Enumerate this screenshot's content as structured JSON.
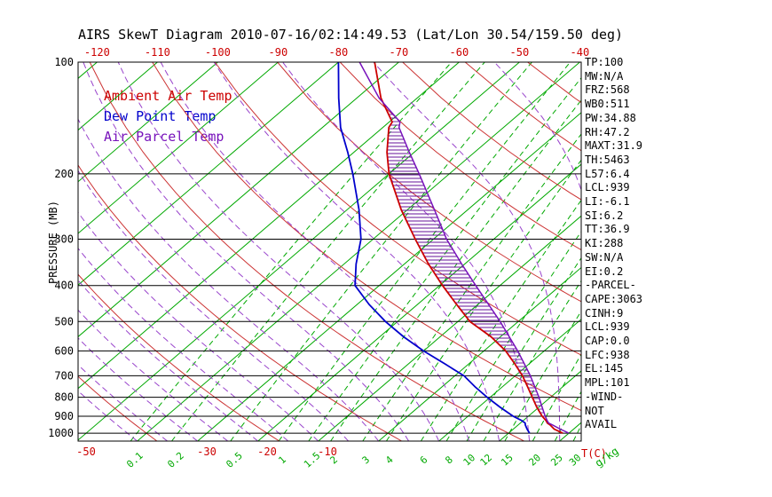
{
  "title": "AIRS SkewT Diagram 2010-07-16/02:14:49.53 (Lat/Lon 30.54/159.50 deg)",
  "legend": [
    {
      "label": "Ambient Air Temp",
      "color": "#cc0000"
    },
    {
      "label": "Dew Point Temp",
      "color": "#0000cc"
    },
    {
      "label": "Air Parcel Temp",
      "color": "#7711bb"
    }
  ],
  "axes": {
    "pressure_label": "PRESSURE (MB)",
    "pressure_ticks": [
      100,
      200,
      300,
      400,
      500,
      600,
      700,
      800,
      900,
      1000
    ],
    "top_temp_ticks": [
      -120,
      -110,
      -100,
      -90,
      -80,
      -70,
      -60,
      -50,
      -40
    ],
    "bottom_temp_ticks": [
      -50,
      -30,
      -20,
      -10
    ],
    "temp_unit": "T(C)",
    "mixing_ratio_labels": [
      "0.1",
      "0.2",
      "0.5",
      "1",
      "1.5",
      "2",
      "3",
      "4",
      "6",
      "8",
      "10",
      "12",
      "15",
      "20",
      "25",
      "30"
    ],
    "mixing_unit": "g/kg"
  },
  "stats": [
    "TP:100",
    "MW:N/A",
    "FRZ:568",
    "WB0:511",
    "PW:34.88",
    "RH:47.2",
    "MAXT:31.9",
    "TH:5463",
    "L57:6.4",
    "LCL:939",
    "LI:-6.1",
    "SI:6.2",
    "TT:36.9",
    "KI:288",
    "SW:N/A",
    "EI:0.2",
    "-PARCEL-",
    "CAPE:3063",
    "CINH:9",
    "LCL:939",
    "CAP:0.0",
    "LFC:938",
    "EL:145",
    "MPL:101",
    "-WIND-",
    "NOT",
    "AVAIL"
  ],
  "chart_data": {
    "type": "line",
    "subtype": "skewt-log-p",
    "pressure_range_mb": [
      100,
      1050
    ],
    "grid": {
      "isotherms_C": {
        "min": -160,
        "max": 50,
        "step": 10,
        "color": "#00a800",
        "style": "solid"
      },
      "dry_adiabats_theta_C": {
        "min": -140,
        "max": 240,
        "step": 20,
        "color": "#cc3333",
        "style": "solid"
      },
      "moist_adiabats_start_C": {
        "min": -40,
        "max": 45,
        "step": 5,
        "color": "#9944cc",
        "style": "dashed"
      },
      "mixing_ratios_gkg": [
        0.1,
        0.2,
        0.5,
        1,
        1.5,
        2,
        3,
        4,
        6,
        8,
        10,
        12,
        15,
        20,
        25,
        30
      ],
      "mixing_color": "#00a800"
    },
    "cape_hatch": {
      "from_mb": 938,
      "to_mb": 138,
      "color": "#661199"
    },
    "series": [
      {
        "name": "Ambient Air Temp",
        "color": "#cc0000",
        "points_p_T": [
          [
            1000,
            29
          ],
          [
            975,
            26.8
          ],
          [
            950,
            25.3
          ],
          [
            939,
            24.5
          ],
          [
            925,
            23.8
          ],
          [
            900,
            22.3
          ],
          [
            850,
            19.6
          ],
          [
            800,
            17
          ],
          [
            750,
            14.2
          ],
          [
            700,
            11.2
          ],
          [
            650,
            7.6
          ],
          [
            600,
            3.6
          ],
          [
            550,
            -1.5
          ],
          [
            500,
            -8
          ],
          [
            450,
            -13.5
          ],
          [
            400,
            -19.5
          ],
          [
            350,
            -26
          ],
          [
            300,
            -33
          ],
          [
            250,
            -41
          ],
          [
            200,
            -50
          ],
          [
            175,
            -54.5
          ],
          [
            150,
            -59
          ],
          [
            145,
            -59.5
          ],
          [
            125,
            -66
          ],
          [
            100,
            -74
          ]
        ]
      },
      {
        "name": "Dew Point Temp",
        "color": "#0000cc",
        "points_p_T": [
          [
            1000,
            23.5
          ],
          [
            975,
            22.3
          ],
          [
            950,
            21.2
          ],
          [
            939,
            20.8
          ],
          [
            925,
            19.8
          ],
          [
            900,
            17.5
          ],
          [
            850,
            13.5
          ],
          [
            800,
            9.5
          ],
          [
            750,
            5.5
          ],
          [
            700,
            1.5
          ],
          [
            650,
            -4
          ],
          [
            600,
            -10
          ],
          [
            550,
            -16
          ],
          [
            500,
            -22
          ],
          [
            450,
            -28
          ],
          [
            400,
            -34
          ],
          [
            350,
            -38
          ],
          [
            300,
            -42
          ],
          [
            250,
            -48
          ],
          [
            200,
            -56
          ],
          [
            175,
            -61
          ],
          [
            150,
            -67
          ],
          [
            125,
            -73
          ],
          [
            100,
            -80
          ]
        ]
      },
      {
        "name": "Air Parcel Temp",
        "color": "#7711bb",
        "points_p_T": [
          [
            1000,
            30
          ],
          [
            975,
            27.8
          ],
          [
            950,
            25.7
          ],
          [
            939,
            24.7
          ],
          [
            925,
            24
          ],
          [
            900,
            22.8
          ],
          [
            850,
            20.5
          ],
          [
            800,
            18.1
          ],
          [
            750,
            15.4
          ],
          [
            700,
            12.5
          ],
          [
            650,
            9.2
          ],
          [
            600,
            5.6
          ],
          [
            550,
            1.5
          ],
          [
            500,
            -3
          ],
          [
            450,
            -8.2
          ],
          [
            400,
            -14
          ],
          [
            350,
            -20.5
          ],
          [
            300,
            -27.8
          ],
          [
            250,
            -35.5
          ],
          [
            200,
            -45
          ],
          [
            175,
            -50.8
          ],
          [
            150,
            -57.3
          ],
          [
            145,
            -58.2
          ],
          [
            125,
            -66.3
          ],
          [
            100,
            -76.5
          ]
        ]
      }
    ]
  }
}
